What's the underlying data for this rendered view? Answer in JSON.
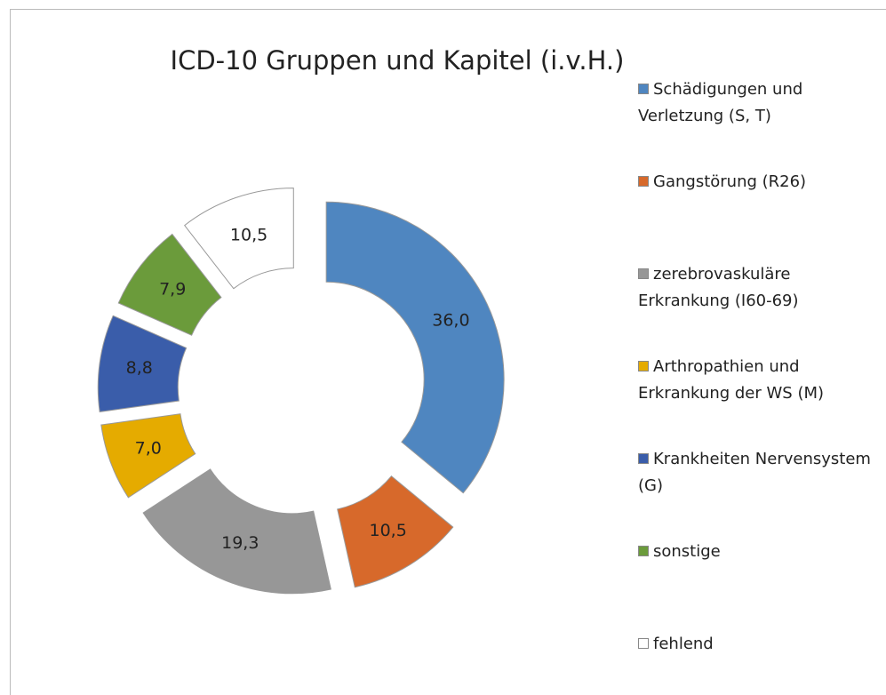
{
  "chart_data": {
    "type": "doughnut",
    "title": "ICD-10 Gruppen und Kapitel  (i.v.H.)",
    "categories": [
      "Schädigungen und Verletzung (S, T)",
      "Gangstörung (R26)",
      "zerebrovaskuläre Erkrankung (I60-69)",
      "Arthropathien und Erkrankung der WS (M)",
      "Krankheiten Nervensystem (G)",
      "sonstige",
      "fehlend"
    ],
    "values": [
      36.0,
      10.5,
      19.3,
      7.0,
      8.8,
      7.9,
      10.5
    ],
    "value_labels": [
      "36,0",
      "10,5",
      "19,3",
      "7,0",
      "8,8",
      "7,9",
      "10,5"
    ],
    "colors": [
      "#4f86c0",
      "#d7692b",
      "#979797",
      "#e5ab00",
      "#3a5daa",
      "#6b9b3b",
      "#ffffff"
    ],
    "legend": "right"
  }
}
